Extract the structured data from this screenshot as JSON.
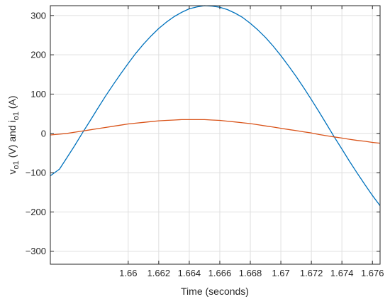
{
  "chart_data": {
    "type": "line",
    "xlabel": "Time (seconds)",
    "ylabel_parts": [
      "v",
      "o1",
      " (V) and i",
      "o1",
      " (A)"
    ],
    "xlim": [
      1.6549,
      1.6765
    ],
    "ylim": [
      -333,
      325
    ],
    "x_ticks": [
      1.66,
      1.662,
      1.664,
      1.666,
      1.668,
      1.67,
      1.672,
      1.674,
      1.676
    ],
    "x_tick_labels": [
      "1.66",
      "1.662",
      "1.664",
      "1.666",
      "1.668",
      "1.67",
      "1.672",
      "1.674",
      "1.676"
    ],
    "y_ticks": [
      -300,
      -200,
      -100,
      0,
      100,
      200,
      300
    ],
    "y_tick_labels": [
      "−300",
      "−200",
      "−100",
      "0",
      "100",
      "200",
      "300"
    ],
    "grid": true,
    "series": [
      {
        "color": "#0072BD",
        "x": [
          1.6549,
          1.6555,
          1.656,
          1.6565,
          1.657,
          1.6575,
          1.658,
          1.6585,
          1.659,
          1.6595,
          1.66,
          1.6605,
          1.661,
          1.6615,
          1.662,
          1.6625,
          1.663,
          1.6635,
          1.664,
          1.6645,
          1.665,
          1.6655,
          1.666,
          1.6665,
          1.667,
          1.6675,
          1.668,
          1.6685,
          1.669,
          1.6695,
          1.67,
          1.6705,
          1.671,
          1.6715,
          1.672,
          1.6725,
          1.673,
          1.6735,
          1.674,
          1.6745,
          1.675,
          1.6755,
          1.676,
          1.6765
        ],
        "y": [
          -108,
          -91,
          -61,
          -31,
          1,
          32,
          63,
          94,
          123,
          151,
          178,
          204,
          227,
          248,
          267,
          283,
          297,
          308,
          317,
          322,
          325,
          324,
          321,
          315,
          306,
          295,
          280,
          263,
          244,
          222,
          198,
          172,
          145,
          116,
          86,
          55,
          23,
          -9,
          -40,
          -71,
          -101,
          -130,
          -158,
          -184
        ]
      },
      {
        "color": "#D95319",
        "x": [
          1.6549,
          1.6555,
          1.656,
          1.6565,
          1.657,
          1.6575,
          1.658,
          1.6585,
          1.659,
          1.6595,
          1.66,
          1.6605,
          1.661,
          1.6615,
          1.662,
          1.6625,
          1.663,
          1.6635,
          1.664,
          1.6645,
          1.665,
          1.6655,
          1.666,
          1.6665,
          1.667,
          1.6675,
          1.668,
          1.6685,
          1.669,
          1.6695,
          1.67,
          1.6705,
          1.671,
          1.6715,
          1.672,
          1.6725,
          1.673,
          1.6735,
          1.674,
          1.6745,
          1.675,
          1.6755,
          1.676,
          1.6765
        ],
        "y": [
          -4,
          -2,
          0,
          3,
          6,
          9,
          12,
          15,
          18,
          21,
          24,
          26,
          28,
          30,
          32,
          33,
          34,
          35,
          35,
          35,
          35,
          34,
          33,
          31,
          29,
          27,
          25,
          22,
          19,
          16,
          13,
          10,
          7,
          4,
          1,
          -3,
          -6,
          -9,
          -12,
          -15,
          -18,
          -20,
          -23,
          -25
        ]
      }
    ]
  }
}
